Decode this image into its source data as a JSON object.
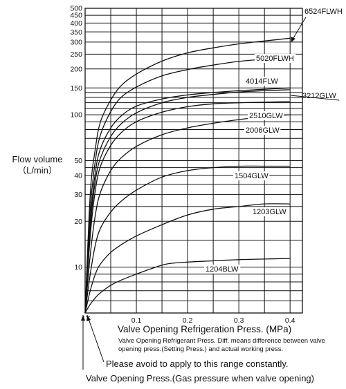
{
  "chart_data": {
    "type": "line",
    "x_unit": "MPa",
    "y_scale": "log",
    "xlim": [
      0,
      0.42
    ],
    "ylim": [
      5,
      500
    ],
    "x_ticks": [
      "0.1",
      "0.2",
      "0.3",
      "0.4"
    ],
    "x_tick_values": [
      0.1,
      0.2,
      0.3,
      0.4
    ],
    "y_ticks": [
      "10",
      "20",
      "30",
      "40",
      "50",
      "100",
      "150",
      "200",
      "250",
      "300",
      "350",
      "400",
      "450",
      "500"
    ],
    "y_tick_values": [
      10,
      20,
      30,
      40,
      50,
      100,
      150,
      200,
      250,
      300,
      350,
      400,
      450,
      500
    ],
    "ylabel_line1": "Flow volume",
    "ylabel_line2": "（L/min）",
    "xlabel": "Valve Opening Refrigeration Press. (MPa)",
    "note": "Valve Opening Refrigerant Press. Diff. means difference between valve opening press.(Setting Press.) and actual working press.",
    "annotation_range": "Please avoid to apply to this range constantly.",
    "annotation_valve": "Valve Opening Press.(Gas pressure when valve opening)",
    "series": [
      {
        "name": "6524FLWH",
        "x": [
          0,
          0.01,
          0.02,
          0.03,
          0.05,
          0.07,
          0.1,
          0.15,
          0.2,
          0.25,
          0.3,
          0.35,
          0.4
        ],
        "y": [
          5,
          30,
          60,
          90,
          125,
          155,
          185,
          225,
          255,
          275,
          292,
          305,
          318
        ]
      },
      {
        "name": "5020FLWH",
        "x": [
          0,
          0.01,
          0.02,
          0.03,
          0.05,
          0.07,
          0.1,
          0.15,
          0.2,
          0.25,
          0.3,
          0.35,
          0.4
        ],
        "y": [
          5,
          24,
          50,
          74,
          105,
          130,
          152,
          180,
          198,
          212,
          224,
          232,
          240
        ]
      },
      {
        "name": "4014FLW",
        "x": [
          0,
          0.01,
          0.02,
          0.03,
          0.05,
          0.07,
          0.1,
          0.15,
          0.2,
          0.25,
          0.3,
          0.35,
          0.4
        ],
        "y": [
          5,
          20,
          42,
          60,
          82,
          98,
          114,
          127,
          135,
          140,
          144,
          147,
          150
        ]
      },
      {
        "name": "3212GLW",
        "x": [
          0,
          0.01,
          0.02,
          0.03,
          0.05,
          0.07,
          0.1,
          0.15,
          0.2,
          0.25,
          0.3,
          0.35,
          0.4
        ],
        "y": [
          5,
          18,
          37,
          52,
          72,
          87,
          103,
          120,
          130,
          136,
          141,
          144,
          146
        ]
      },
      {
        "name": "2510GLW",
        "x": [
          0,
          0.01,
          0.02,
          0.03,
          0.05,
          0.07,
          0.1,
          0.15,
          0.2,
          0.25,
          0.3,
          0.35,
          0.4
        ],
        "y": [
          5,
          16,
          32,
          46,
          63,
          76,
          90,
          104,
          113,
          118,
          120,
          121,
          122
        ]
      },
      {
        "name": "2006GLW",
        "x": [
          0,
          0.01,
          0.02,
          0.03,
          0.05,
          0.07,
          0.1,
          0.15,
          0.2,
          0.25,
          0.3,
          0.35,
          0.4
        ],
        "y": [
          5,
          12,
          22,
          31,
          43,
          52,
          62,
          74,
          82,
          88,
          93,
          97,
          100
        ]
      },
      {
        "name": "1504GLW",
        "x": [
          0,
          0.01,
          0.02,
          0.03,
          0.05,
          0.07,
          0.1,
          0.15,
          0.2,
          0.25,
          0.3,
          0.35,
          0.4
        ],
        "y": [
          5,
          9,
          14,
          18,
          23,
          27,
          32,
          39,
          43,
          45,
          46,
          46,
          46
        ]
      },
      {
        "name": "1203GLW",
        "x": [
          0,
          0.01,
          0.02,
          0.03,
          0.05,
          0.07,
          0.1,
          0.15,
          0.2,
          0.25,
          0.3,
          0.35,
          0.4
        ],
        "y": [
          5,
          7,
          9,
          10.5,
          12.5,
          14,
          16,
          19,
          22,
          24,
          25,
          26,
          26
        ]
      },
      {
        "name": "1204BLW",
        "x": [
          0,
          0.01,
          0.02,
          0.03,
          0.05,
          0.07,
          0.1,
          0.13,
          0.16,
          0.2,
          0.25,
          0.3,
          0.35,
          0.4
        ],
        "y": [
          5,
          5.7,
          6.3,
          6.8,
          7.6,
          8.2,
          9,
          9.8,
          10.5,
          10.8,
          11,
          11.2,
          11.3,
          11.4
        ]
      }
    ]
  }
}
